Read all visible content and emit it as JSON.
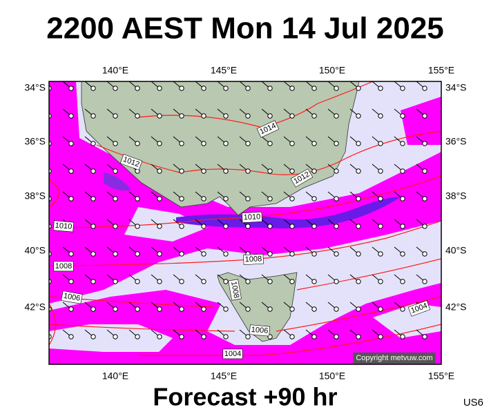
{
  "header": {
    "title": "2200 AEST Mon 14 Jul 2025"
  },
  "map": {
    "lon_labels": [
      "140°E",
      "145°E",
      "150°E",
      "155°E"
    ],
    "lat_labels": [
      "34°S",
      "36°S",
      "38°S",
      "40°S",
      "42°S"
    ],
    "isobar_labels": [
      "1014",
      "1012",
      "1012",
      "1010",
      "1010",
      "1008",
      "1008",
      "1008",
      "1006",
      "1006",
      "1004",
      "1004"
    ],
    "copyright": "Copyright metvuw.com"
  },
  "footer": {
    "forecast": "Forecast +90 hr",
    "code": "US6"
  }
}
